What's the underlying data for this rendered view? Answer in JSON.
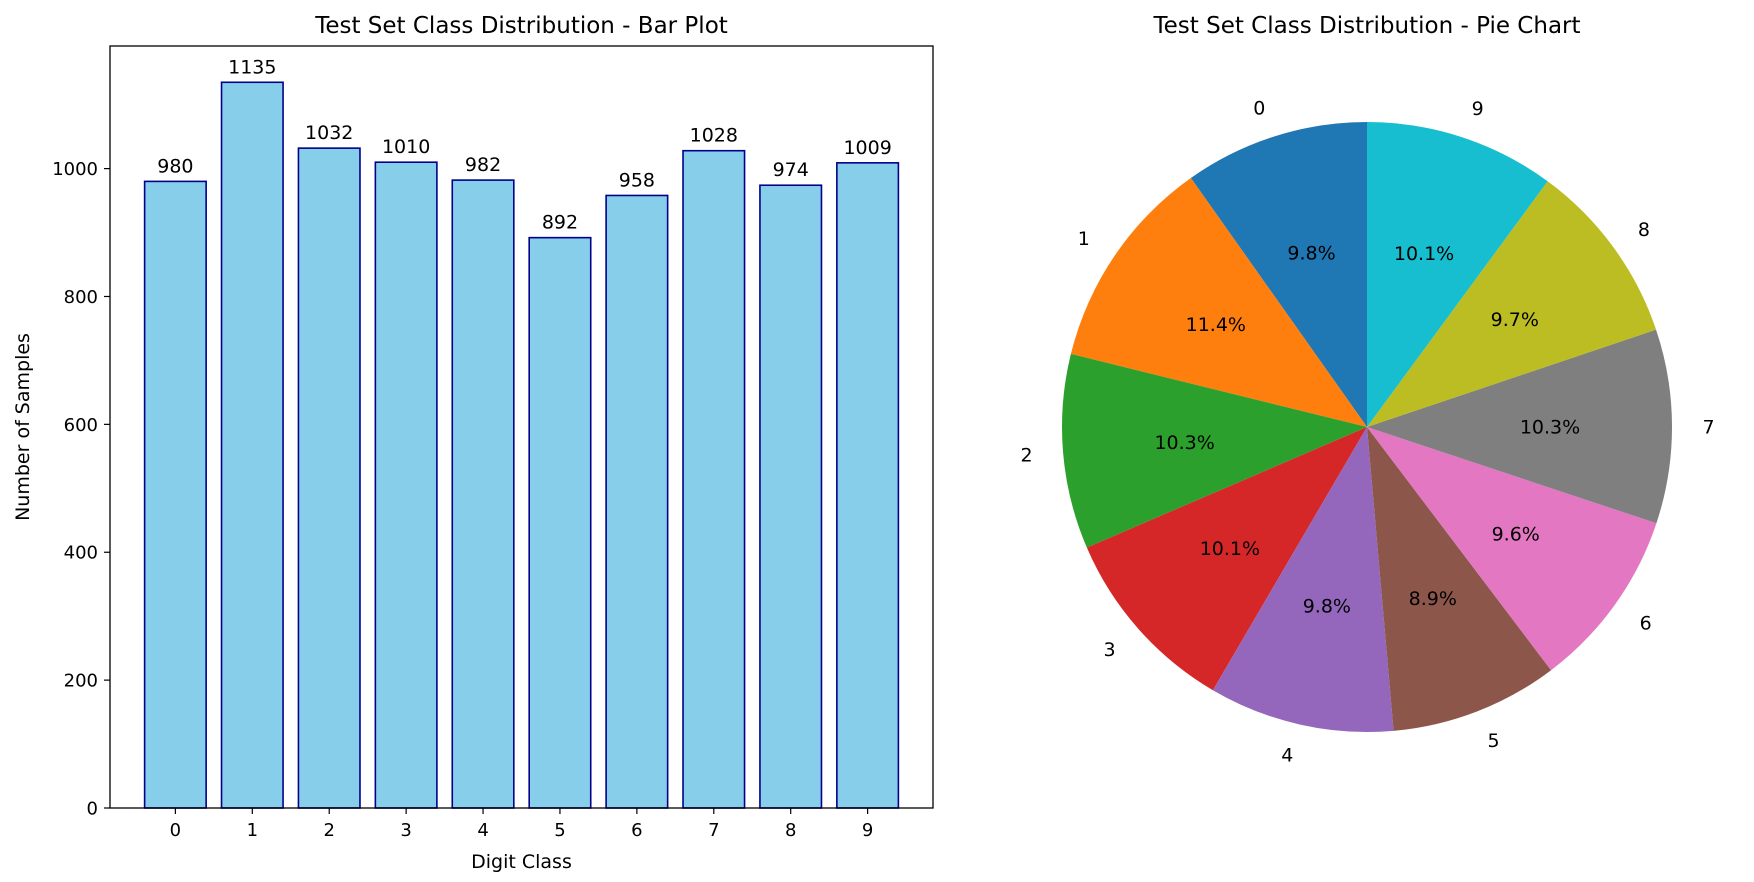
{
  "chart_data": [
    {
      "type": "bar",
      "title": "Test Set Class Distribution - Bar Plot",
      "xlabel": "Digit Class",
      "ylabel": "Number of Samples",
      "categories": [
        "0",
        "1",
        "2",
        "3",
        "4",
        "5",
        "6",
        "7",
        "8",
        "9"
      ],
      "values": [
        980,
        1135,
        1032,
        1010,
        982,
        892,
        958,
        1028,
        974,
        1009
      ],
      "data_labels": [
        "980",
        "1135",
        "1032",
        "1010",
        "982",
        "892",
        "958",
        "1028",
        "974",
        "1009"
      ],
      "ylim": [
        0,
        1191.75
      ],
      "yticks": [
        0,
        200,
        400,
        600,
        800,
        1000
      ],
      "ytick_labels": [
        "0",
        "200",
        "400",
        "600",
        "800",
        "1000"
      ],
      "bar_color": "#87ceeb",
      "edge_color": "#00008b",
      "grid": false,
      "legend": "none"
    },
    {
      "type": "pie",
      "title": "Test Set Class Distribution - Pie Chart",
      "categories": [
        "0",
        "1",
        "2",
        "3",
        "4",
        "5",
        "6",
        "7",
        "8",
        "9"
      ],
      "values": [
        980,
        1135,
        1032,
        1010,
        982,
        892,
        958,
        1028,
        974,
        1009
      ],
      "percent_labels": [
        "9.8%",
        "11.4%",
        "10.3%",
        "10.1%",
        "9.8%",
        "8.9%",
        "9.6%",
        "10.3%",
        "9.7%",
        "10.1%"
      ],
      "colors": [
        "#1f77b4",
        "#ff7f0e",
        "#2ca02c",
        "#d62728",
        "#9467bd",
        "#8c564b",
        "#e377c2",
        "#7f7f7f",
        "#bcbd22",
        "#17becf"
      ],
      "start_angle_deg": 90,
      "direction": "counterclockwise",
      "legend": "none"
    }
  ]
}
